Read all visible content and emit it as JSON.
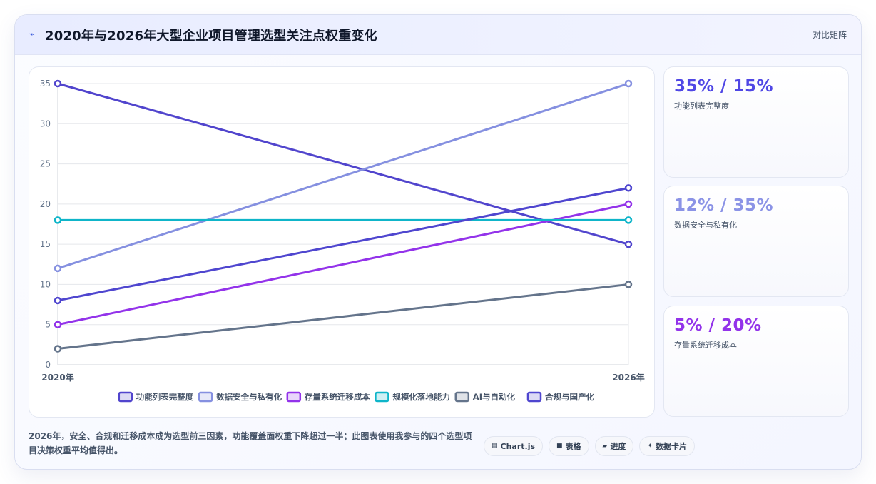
{
  "header": {
    "title": "2020年与2026年大型企业项目管理选型关注点权重变化",
    "right_label": "对比矩阵",
    "icon": "lightning-icon"
  },
  "chart_data": {
    "type": "line",
    "categories": [
      "2020年",
      "2026年"
    ],
    "ylim": [
      0,
      35
    ],
    "yticks": [
      0,
      5,
      10,
      15,
      20,
      25,
      30,
      35
    ],
    "grid": true,
    "legend_position": "bottom",
    "series": [
      {
        "name": "功能列表完整度",
        "values": [
          35,
          15
        ],
        "color": "#5145cd"
      },
      {
        "name": "数据安全与私有化",
        "values": [
          12,
          35
        ],
        "color": "#8590e0"
      },
      {
        "name": "存量系统迁移成本",
        "values": [
          5,
          20
        ],
        "color": "#9333ea"
      },
      {
        "name": "规模化落地能力",
        "values": [
          18,
          18
        ],
        "color": "#0fb5c9"
      },
      {
        "name": "AI与自动化",
        "values": [
          2,
          10
        ],
        "color": "#64748b"
      },
      {
        "name": "合规与国产化",
        "values": [
          8,
          22
        ],
        "color": "#4f46cf"
      }
    ]
  },
  "stats": [
    {
      "value": "35% / 15%",
      "label": "功能列表完整度",
      "color": "#4f46e5"
    },
    {
      "value": "12% / 35%",
      "label": "数据安全与私有化",
      "color": "#8b93e6"
    },
    {
      "value": "5% / 20%",
      "label": "存量系统迁移成本",
      "color": "#9333ea"
    }
  ],
  "footer": {
    "note": "2026年，安全、合规和迁移成本成为选型前三因素，功能覆盖面权重下降超过一半；此图表使用我参与的四个选型项目决策权重平均值得出。",
    "tags": [
      {
        "icon": "chart-icon",
        "glyph": "▤",
        "label": "Chart.js"
      },
      {
        "icon": "table-icon",
        "glyph": "■",
        "label": "表格"
      },
      {
        "icon": "progress-icon",
        "glyph": "▰",
        "label": "进度"
      },
      {
        "icon": "sparkle-icon",
        "glyph": "✦",
        "label": "数据卡片"
      }
    ]
  }
}
